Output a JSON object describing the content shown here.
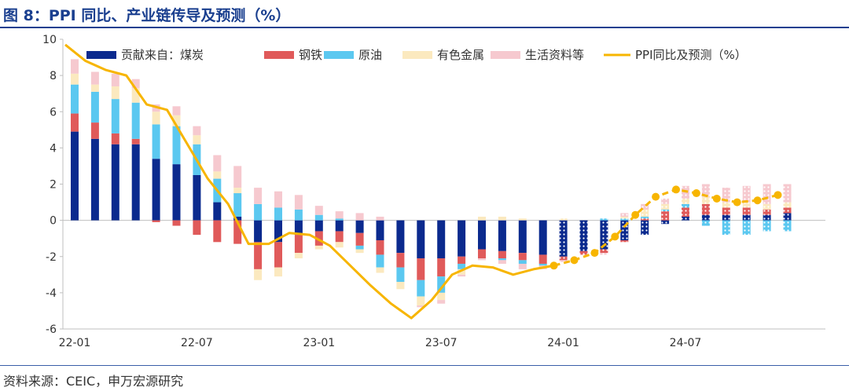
{
  "title": "图 8：PPI 同比、产业链传导及预测（%）",
  "source": "资料来源：CEIC，申万宏源研究",
  "colors": {
    "title": "#1a3f8f",
    "coal": "#0b2a8e",
    "steel": "#e05a5a",
    "oil": "#5bc8f0",
    "metal": "#fbe9bf",
    "living": "#f6c9cf",
    "ppi": "#f7b500"
  },
  "chart_data": {
    "type": "bar",
    "stacked": true,
    "ylim": [
      -6,
      10
    ],
    "yticks": [
      -6,
      -4,
      -2,
      0,
      2,
      4,
      6,
      8,
      10
    ],
    "xtick_labels": [
      "22-01",
      "22-07",
      "23-01",
      "23-07",
      "24-01",
      "24-07"
    ],
    "xtick_positions": [
      0,
      6,
      12,
      18,
      24,
      30
    ],
    "months": [
      "22-01",
      "22-02",
      "22-03",
      "22-04",
      "22-05",
      "22-06",
      "22-07",
      "22-08",
      "22-09",
      "22-10",
      "22-11",
      "22-12",
      "23-01",
      "23-02",
      "23-03",
      "23-04",
      "23-05",
      "23-06",
      "23-07",
      "23-08",
      "23-09",
      "23-10",
      "23-11",
      "23-12",
      "24-01",
      "24-02",
      "24-03",
      "24-04",
      "24-05",
      "24-06",
      "24-07",
      "24-08",
      "24-09",
      "24-10",
      "24-11",
      "24-12"
    ],
    "forecast_start_index": 24,
    "legend": [
      "贡献来自：煤炭",
      "钢铁",
      "原油",
      "有色金属",
      "生活资料等",
      "PPI同比及预测（%）"
    ],
    "legend_position": "top",
    "series": [
      {
        "name": "贡献来自：煤炭",
        "key": "coal",
        "values": [
          4.9,
          4.5,
          4.2,
          4.2,
          3.4,
          3.1,
          2.5,
          1.0,
          0.2,
          -1.2,
          -1.2,
          -0.8,
          -0.6,
          -0.6,
          -0.7,
          -1.1,
          -1.8,
          -2.1,
          -2.1,
          -2.0,
          -1.6,
          -1.7,
          -1.8,
          -1.9,
          -2.0,
          -1.7,
          -1.6,
          -1.1,
          -0.8,
          -0.2,
          0.2,
          0.3,
          0.3,
          0.3,
          0.3,
          0.4
        ]
      },
      {
        "name": "钢铁",
        "key": "steel",
        "values": [
          1.0,
          0.9,
          0.6,
          0.3,
          -0.1,
          -0.3,
          -0.8,
          -1.2,
          -1.3,
          -1.5,
          -1.4,
          -1.0,
          -0.8,
          -0.6,
          -0.7,
          -0.8,
          -0.8,
          -1.2,
          -1.0,
          -0.4,
          -0.5,
          -0.4,
          -0.4,
          -0.5,
          -0.2,
          -0.2,
          -0.2,
          -0.1,
          0.1,
          0.5,
          0.5,
          0.6,
          0.4,
          0.4,
          0.3,
          0.3
        ]
      },
      {
        "name": "原油",
        "key": "oil",
        "values": [
          1.6,
          1.7,
          1.9,
          2.0,
          1.9,
          2.1,
          1.7,
          1.3,
          1.3,
          0.9,
          0.7,
          0.6,
          0.3,
          0.1,
          -0.2,
          -0.7,
          -0.8,
          -0.9,
          -0.9,
          -0.3,
          0.0,
          -0.1,
          -0.2,
          -0.1,
          0.0,
          0.0,
          0.1,
          0.1,
          0.1,
          0.1,
          0.2,
          -0.3,
          -0.8,
          -0.8,
          -0.6,
          -0.6
        ]
      },
      {
        "name": "有色金属",
        "key": "metal",
        "values": [
          0.6,
          0.4,
          0.7,
          0.8,
          0.7,
          0.6,
          0.5,
          0.4,
          0.3,
          -0.6,
          -0.5,
          -0.3,
          -0.2,
          -0.3,
          -0.2,
          -0.3,
          -0.4,
          -0.5,
          -0.4,
          -0.3,
          0.2,
          0.2,
          0.1,
          0.0,
          0.1,
          0.0,
          0.0,
          0.1,
          0.4,
          0.3,
          0.3,
          0.4,
          0.3,
          0.3,
          0.3,
          0.3
        ]
      },
      {
        "name": "生活资料等",
        "key": "living",
        "values": [
          0.8,
          0.7,
          0.7,
          0.5,
          0.4,
          0.5,
          0.5,
          0.9,
          1.2,
          0.9,
          0.9,
          0.8,
          0.5,
          0.4,
          0.4,
          0.2,
          0.0,
          -0.1,
          -0.2,
          -0.1,
          -0.1,
          -0.2,
          -0.3,
          -0.2,
          -0.1,
          0.0,
          -0.1,
          0.2,
          0.3,
          0.3,
          0.7,
          0.7,
          0.8,
          0.9,
          1.1,
          1.0
        ]
      },
      {
        "name": "PPI同比及预测（%）",
        "key": "ppi",
        "type": "line",
        "values": [
          9.7,
          8.8,
          8.3,
          8.0,
          6.4,
          6.1,
          4.2,
          2.3,
          0.9,
          -1.3,
          -1.3,
          -0.7,
          -0.8,
          -1.4,
          -2.5,
          -3.6,
          -4.6,
          -5.4,
          -4.4,
          -3.0,
          -2.5,
          -2.6,
          -3.0,
          -2.7,
          -2.5,
          -2.2,
          -1.8,
          -0.9,
          0.3,
          1.3,
          1.7,
          1.5,
          1.2,
          1.0,
          1.1,
          1.4
        ]
      }
    ]
  }
}
